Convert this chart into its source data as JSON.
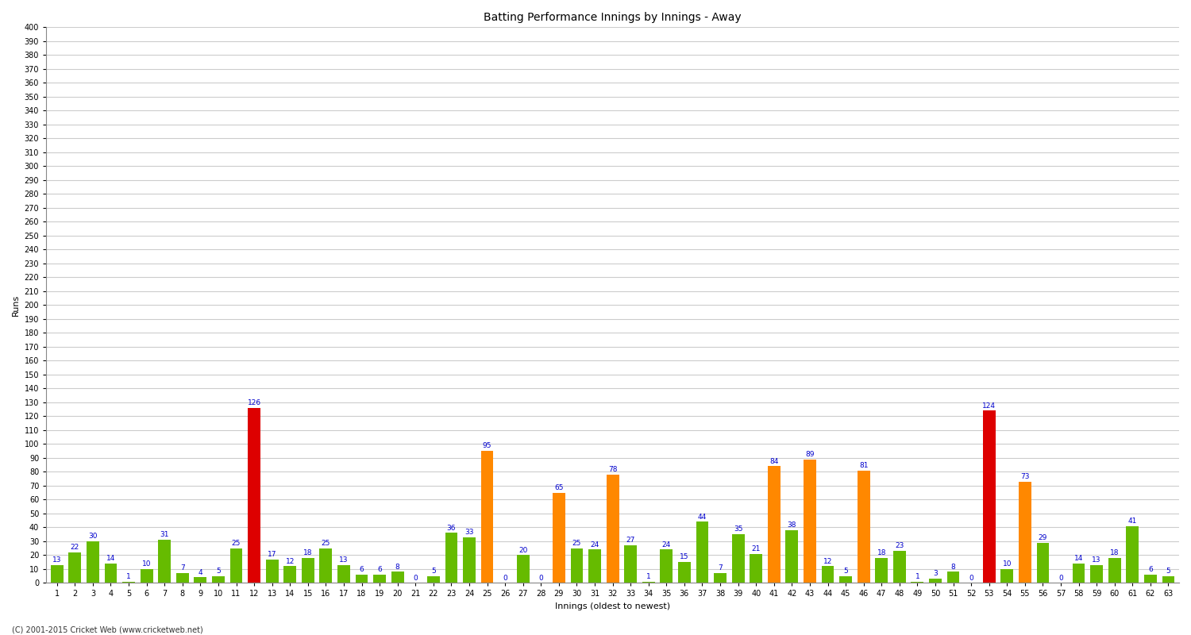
{
  "title": "Batting Performance Innings by Innings - Away",
  "xlabel": "Innings (oldest to newest)",
  "ylabel": "Runs",
  "values": [
    13,
    22,
    30,
    14,
    1,
    10,
    31,
    7,
    4,
    5,
    25,
    126,
    17,
    12,
    18,
    25,
    13,
    6,
    6,
    8,
    0,
    5,
    36,
    33,
    95,
    0,
    20,
    0,
    65,
    25,
    24,
    78,
    27,
    1,
    24,
    15,
    44,
    7,
    35,
    21,
    84,
    38,
    89,
    12,
    5,
    81,
    18,
    23,
    1,
    3,
    8,
    0,
    124,
    10,
    73,
    29,
    0,
    14,
    13,
    18,
    41,
    6,
    5
  ],
  "colors": [
    "#66bb00",
    "#66bb00",
    "#66bb00",
    "#66bb00",
    "#66bb00",
    "#66bb00",
    "#66bb00",
    "#66bb00",
    "#66bb00",
    "#66bb00",
    "#66bb00",
    "#dd0000",
    "#66bb00",
    "#66bb00",
    "#66bb00",
    "#66bb00",
    "#66bb00",
    "#66bb00",
    "#66bb00",
    "#66bb00",
    "#66bb00",
    "#66bb00",
    "#66bb00",
    "#66bb00",
    "#ff8800",
    "#66bb00",
    "#66bb00",
    "#66bb00",
    "#ff8800",
    "#66bb00",
    "#66bb00",
    "#ff8800",
    "#66bb00",
    "#66bb00",
    "#66bb00",
    "#66bb00",
    "#66bb00",
    "#66bb00",
    "#66bb00",
    "#66bb00",
    "#ff8800",
    "#66bb00",
    "#ff8800",
    "#66bb00",
    "#66bb00",
    "#ff8800",
    "#66bb00",
    "#66bb00",
    "#66bb00",
    "#66bb00",
    "#66bb00",
    "#66bb00",
    "#dd0000",
    "#66bb00",
    "#ff8800",
    "#66bb00",
    "#66bb00",
    "#66bb00",
    "#66bb00",
    "#66bb00",
    "#66bb00",
    "#66bb00",
    "#66bb00"
  ],
  "tick_labels": [
    "1",
    "2",
    "3",
    "4",
    "5",
    "6",
    "7",
    "8",
    "9",
    "10",
    "11",
    "12",
    "13",
    "14",
    "15",
    "16",
    "17",
    "18",
    "19",
    "20",
    "21",
    "22",
    "23",
    "24",
    "25",
    "26",
    "27",
    "28",
    "29",
    "30",
    "31",
    "32",
    "33",
    "34",
    "35",
    "36",
    "37",
    "38",
    "39",
    "40",
    "41",
    "42",
    "43",
    "44",
    "45",
    "46",
    "47",
    "48",
    "49",
    "50",
    "51",
    "52",
    "53",
    "54",
    "55",
    "56",
    "57",
    "58",
    "59",
    "60",
    "61",
    "62",
    "63"
  ],
  "ylim": [
    0,
    400
  ],
  "yticks": [
    0,
    10,
    20,
    30,
    40,
    50,
    60,
    70,
    80,
    90,
    100,
    110,
    120,
    130,
    140,
    150,
    160,
    170,
    180,
    190,
    200,
    210,
    220,
    230,
    240,
    250,
    260,
    270,
    280,
    290,
    300,
    310,
    320,
    330,
    340,
    350,
    360,
    370,
    380,
    390,
    400
  ],
  "background_color": "#ffffff",
  "plot_bg_color": "#ffffff",
  "grid_color": "#cccccc",
  "bar_width": 0.7,
  "title_fontsize": 10,
  "axis_fontsize": 8,
  "tick_fontsize": 7,
  "label_fontsize": 6.5,
  "footer": "(C) 2001-2015 Cricket Web (www.cricketweb.net)"
}
